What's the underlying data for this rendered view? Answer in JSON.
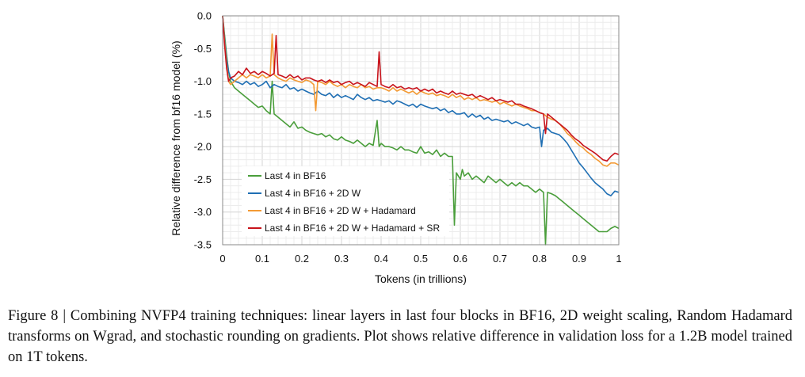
{
  "figure": {
    "caption": "Figure 8 | Combining NVFP4 training techniques: linear layers in last four blocks in BF16, 2D weight scaling, Random Hadamard transforms on Wgrad, and stochastic rounding on gradients. Plot shows relative difference in validation loss for a 1.2B model trained on 1T tokens."
  },
  "chart_data": {
    "type": "line",
    "title": "",
    "xlabel": "Tokens (in trillions)",
    "ylabel": "Relative difference from bf16 model (%)",
    "xlim": [
      0,
      1
    ],
    "ylim": [
      -3.5,
      0.0
    ],
    "x_ticks": [
      0,
      0.1,
      0.2,
      0.3,
      0.4,
      0.5,
      0.6,
      0.7,
      0.8,
      0.9,
      1
    ],
    "x_tick_labels": [
      "0",
      "0.1",
      "0.2",
      "0.3",
      "0.4",
      "0.5",
      "0.6",
      "0.7",
      "0.8",
      "0.9",
      "1"
    ],
    "y_ticks": [
      0.0,
      -0.5,
      -1.0,
      -1.5,
      -2.0,
      -2.5,
      -3.0,
      -3.5
    ],
    "y_tick_labels": [
      "0.0",
      "-0.5",
      "-1.0",
      "-1.5",
      "-2.0",
      "-2.5",
      "-3.0",
      "-3.5"
    ],
    "grid": true,
    "legend_position": "bottom-left",
    "series": [
      {
        "name": "Last 4 in BF16",
        "color": "#4a9e3b",
        "x": [
          0.0,
          0.005,
          0.01,
          0.015,
          0.02,
          0.03,
          0.04,
          0.05,
          0.06,
          0.07,
          0.08,
          0.09,
          0.1,
          0.11,
          0.12,
          0.125,
          0.13,
          0.14,
          0.15,
          0.16,
          0.17,
          0.18,
          0.19,
          0.2,
          0.21,
          0.22,
          0.23,
          0.24,
          0.25,
          0.26,
          0.27,
          0.28,
          0.29,
          0.3,
          0.31,
          0.32,
          0.33,
          0.34,
          0.35,
          0.36,
          0.37,
          0.38,
          0.39,
          0.395,
          0.4,
          0.41,
          0.42,
          0.43,
          0.44,
          0.45,
          0.46,
          0.47,
          0.48,
          0.49,
          0.5,
          0.51,
          0.52,
          0.53,
          0.54,
          0.55,
          0.56,
          0.57,
          0.58,
          0.585,
          0.59,
          0.6,
          0.605,
          0.61,
          0.62,
          0.63,
          0.64,
          0.65,
          0.66,
          0.67,
          0.68,
          0.69,
          0.7,
          0.71,
          0.72,
          0.73,
          0.74,
          0.75,
          0.76,
          0.77,
          0.78,
          0.79,
          0.8,
          0.81,
          0.815,
          0.82,
          0.83,
          0.84,
          0.85,
          0.86,
          0.87,
          0.88,
          0.89,
          0.9,
          0.91,
          0.92,
          0.93,
          0.94,
          0.95,
          0.96,
          0.97,
          0.98,
          0.99,
          1.0
        ],
        "values": [
          0.0,
          -0.3,
          -0.6,
          -0.85,
          -1.0,
          -1.1,
          -1.15,
          -1.2,
          -1.25,
          -1.3,
          -1.35,
          -1.4,
          -1.38,
          -1.45,
          -1.5,
          -1.0,
          -1.5,
          -1.55,
          -1.6,
          -1.65,
          -1.7,
          -1.62,
          -1.72,
          -1.7,
          -1.75,
          -1.78,
          -1.8,
          -1.82,
          -1.8,
          -1.85,
          -1.82,
          -1.88,
          -1.9,
          -1.85,
          -1.9,
          -1.92,
          -1.95,
          -1.9,
          -1.95,
          -2.0,
          -1.95,
          -1.98,
          -1.6,
          -2.0,
          -1.95,
          -2.0,
          -2.0,
          -2.02,
          -2.05,
          -2.0,
          -2.05,
          -2.05,
          -2.08,
          -2.1,
          -2.0,
          -2.1,
          -2.08,
          -2.12,
          -2.05,
          -2.15,
          -2.1,
          -2.15,
          -2.15,
          -3.2,
          -2.4,
          -2.5,
          -2.35,
          -2.45,
          -2.4,
          -2.5,
          -2.45,
          -2.5,
          -2.55,
          -2.45,
          -2.5,
          -2.55,
          -2.5,
          -2.55,
          -2.6,
          -2.55,
          -2.6,
          -2.55,
          -2.6,
          -2.6,
          -2.65,
          -2.7,
          -2.65,
          -2.7,
          -3.5,
          -2.7,
          -2.72,
          -2.75,
          -2.8,
          -2.85,
          -2.9,
          -2.95,
          -3.0,
          -3.05,
          -3.1,
          -3.15,
          -3.2,
          -3.25,
          -3.3,
          -3.3,
          -3.3,
          -3.25,
          -3.22,
          -3.25
        ]
      },
      {
        "name": "Last 4 in BF16 + 2D W",
        "color": "#1f6fb4",
        "x": [
          0.0,
          0.005,
          0.01,
          0.015,
          0.02,
          0.03,
          0.04,
          0.05,
          0.06,
          0.07,
          0.08,
          0.09,
          0.1,
          0.11,
          0.12,
          0.13,
          0.14,
          0.15,
          0.16,
          0.17,
          0.18,
          0.19,
          0.2,
          0.21,
          0.22,
          0.23,
          0.24,
          0.25,
          0.26,
          0.27,
          0.28,
          0.29,
          0.3,
          0.31,
          0.32,
          0.33,
          0.34,
          0.35,
          0.36,
          0.37,
          0.38,
          0.39,
          0.4,
          0.41,
          0.42,
          0.43,
          0.44,
          0.45,
          0.46,
          0.47,
          0.48,
          0.49,
          0.5,
          0.51,
          0.52,
          0.53,
          0.54,
          0.55,
          0.56,
          0.57,
          0.58,
          0.59,
          0.6,
          0.61,
          0.62,
          0.63,
          0.64,
          0.65,
          0.66,
          0.67,
          0.68,
          0.69,
          0.7,
          0.71,
          0.72,
          0.73,
          0.74,
          0.75,
          0.76,
          0.77,
          0.78,
          0.79,
          0.8,
          0.805,
          0.81,
          0.82,
          0.83,
          0.84,
          0.85,
          0.86,
          0.87,
          0.88,
          0.89,
          0.9,
          0.91,
          0.92,
          0.93,
          0.94,
          0.95,
          0.96,
          0.97,
          0.98,
          0.99,
          1.0
        ],
        "values": [
          0.0,
          -0.35,
          -0.65,
          -0.85,
          -0.95,
          -1.0,
          -1.02,
          -1.05,
          -1.0,
          -1.05,
          -1.02,
          -1.08,
          -1.05,
          -1.0,
          -1.1,
          -1.05,
          -1.08,
          -1.1,
          -1.05,
          -1.12,
          -1.1,
          -1.15,
          -1.12,
          -1.15,
          -1.18,
          -1.2,
          -1.15,
          -1.2,
          -1.22,
          -1.18,
          -1.25,
          -1.2,
          -1.25,
          -1.22,
          -1.25,
          -1.28,
          -1.2,
          -1.25,
          -1.28,
          -1.25,
          -1.3,
          -1.28,
          -1.3,
          -1.32,
          -1.3,
          -1.35,
          -1.3,
          -1.32,
          -1.35,
          -1.38,
          -1.35,
          -1.4,
          -1.35,
          -1.38,
          -1.4,
          -1.42,
          -1.4,
          -1.45,
          -1.42,
          -1.48,
          -1.45,
          -1.5,
          -1.5,
          -1.48,
          -1.55,
          -1.5,
          -1.55,
          -1.52,
          -1.58,
          -1.55,
          -1.6,
          -1.58,
          -1.6,
          -1.62,
          -1.6,
          -1.65,
          -1.62,
          -1.65,
          -1.68,
          -1.65,
          -1.7,
          -1.72,
          -1.7,
          -2.0,
          -1.75,
          -1.72,
          -1.78,
          -1.8,
          -1.82,
          -1.88,
          -1.95,
          -2.05,
          -2.15,
          -2.25,
          -2.32,
          -2.4,
          -2.48,
          -2.55,
          -2.6,
          -2.65,
          -2.72,
          -2.75,
          -2.68,
          -2.7
        ]
      },
      {
        "name": "Last 4 in BF16 + 2D W + Hadamard",
        "color": "#f39a34",
        "x": [
          0.0,
          0.005,
          0.01,
          0.015,
          0.02,
          0.03,
          0.04,
          0.05,
          0.06,
          0.07,
          0.08,
          0.09,
          0.1,
          0.11,
          0.12,
          0.125,
          0.13,
          0.14,
          0.15,
          0.16,
          0.17,
          0.18,
          0.19,
          0.2,
          0.21,
          0.22,
          0.23,
          0.235,
          0.24,
          0.25,
          0.26,
          0.27,
          0.28,
          0.29,
          0.3,
          0.31,
          0.32,
          0.33,
          0.34,
          0.35,
          0.36,
          0.37,
          0.38,
          0.39,
          0.4,
          0.41,
          0.42,
          0.43,
          0.44,
          0.45,
          0.46,
          0.47,
          0.48,
          0.49,
          0.5,
          0.51,
          0.52,
          0.53,
          0.54,
          0.55,
          0.56,
          0.57,
          0.58,
          0.59,
          0.6,
          0.61,
          0.62,
          0.63,
          0.64,
          0.65,
          0.66,
          0.67,
          0.68,
          0.69,
          0.7,
          0.71,
          0.72,
          0.73,
          0.74,
          0.75,
          0.76,
          0.77,
          0.78,
          0.79,
          0.8,
          0.81,
          0.82,
          0.83,
          0.84,
          0.85,
          0.86,
          0.87,
          0.88,
          0.89,
          0.9,
          0.91,
          0.92,
          0.93,
          0.94,
          0.95,
          0.96,
          0.97,
          0.98,
          0.99,
          1.0
        ],
        "values": [
          0.0,
          -0.4,
          -0.75,
          -1.0,
          -1.05,
          -1.0,
          -0.95,
          -0.9,
          -0.95,
          -0.9,
          -0.92,
          -0.95,
          -0.9,
          -0.95,
          -0.92,
          -0.28,
          -0.9,
          -0.95,
          -0.98,
          -1.0,
          -0.95,
          -0.98,
          -1.0,
          -1.02,
          -0.98,
          -1.0,
          -1.05,
          -1.45,
          -1.0,
          -1.02,
          -1.05,
          -1.0,
          -1.05,
          -1.08,
          -1.05,
          -1.1,
          -1.05,
          -1.08,
          -1.1,
          -1.05,
          -1.1,
          -1.08,
          -1.12,
          -1.1,
          -1.1,
          -1.12,
          -1.15,
          -1.1,
          -1.15,
          -1.12,
          -1.15,
          -1.18,
          -1.15,
          -1.2,
          -1.15,
          -1.18,
          -1.2,
          -1.18,
          -1.22,
          -1.2,
          -1.22,
          -1.25,
          -1.2,
          -1.25,
          -1.22,
          -1.28,
          -1.25,
          -1.28,
          -1.25,
          -1.3,
          -1.28,
          -1.3,
          -1.32,
          -1.3,
          -1.35,
          -1.32,
          -1.35,
          -1.38,
          -1.35,
          -1.38,
          -1.4,
          -1.42,
          -1.45,
          -1.45,
          -1.48,
          -1.5,
          -1.55,
          -1.58,
          -1.6,
          -1.65,
          -1.72,
          -1.8,
          -1.85,
          -1.92,
          -1.98,
          -2.02,
          -2.08,
          -2.12,
          -2.18,
          -2.22,
          -2.28,
          -2.3,
          -2.25,
          -2.25,
          -2.28
        ]
      },
      {
        "name": "Last 4 in BF16 + 2D W + Hadamard + SR",
        "color": "#c8141c",
        "x": [
          0.0,
          0.005,
          0.01,
          0.015,
          0.02,
          0.03,
          0.04,
          0.05,
          0.06,
          0.07,
          0.08,
          0.09,
          0.1,
          0.11,
          0.12,
          0.13,
          0.135,
          0.14,
          0.15,
          0.16,
          0.17,
          0.18,
          0.19,
          0.2,
          0.21,
          0.22,
          0.23,
          0.24,
          0.25,
          0.26,
          0.27,
          0.28,
          0.29,
          0.3,
          0.31,
          0.32,
          0.33,
          0.34,
          0.35,
          0.36,
          0.37,
          0.38,
          0.39,
          0.395,
          0.4,
          0.41,
          0.42,
          0.43,
          0.44,
          0.45,
          0.46,
          0.47,
          0.48,
          0.49,
          0.5,
          0.51,
          0.52,
          0.53,
          0.54,
          0.55,
          0.56,
          0.57,
          0.58,
          0.59,
          0.6,
          0.61,
          0.62,
          0.63,
          0.64,
          0.65,
          0.66,
          0.67,
          0.68,
          0.69,
          0.7,
          0.71,
          0.72,
          0.73,
          0.74,
          0.75,
          0.76,
          0.77,
          0.78,
          0.79,
          0.8,
          0.81,
          0.815,
          0.82,
          0.83,
          0.84,
          0.85,
          0.86,
          0.87,
          0.88,
          0.89,
          0.9,
          0.91,
          0.92,
          0.93,
          0.94,
          0.95,
          0.96,
          0.97,
          0.98,
          0.99,
          1.0
        ],
        "values": [
          0.0,
          -0.45,
          -0.8,
          -1.0,
          -0.95,
          -0.92,
          -0.85,
          -0.9,
          -0.8,
          -0.88,
          -0.85,
          -0.9,
          -0.85,
          -0.88,
          -0.92,
          -0.88,
          -0.3,
          -0.9,
          -0.92,
          -0.95,
          -0.9,
          -0.95,
          -0.92,
          -0.98,
          -0.95,
          -0.95,
          -0.98,
          -1.0,
          -0.98,
          -1.02,
          -0.98,
          -1.02,
          -1.0,
          -1.05,
          -1.02,
          -1.0,
          -1.05,
          -1.02,
          -1.05,
          -1.08,
          -1.02,
          -1.05,
          -1.08,
          -0.55,
          -1.05,
          -1.08,
          -1.1,
          -1.05,
          -1.1,
          -1.08,
          -1.12,
          -1.1,
          -1.12,
          -1.1,
          -1.15,
          -1.12,
          -1.15,
          -1.12,
          -1.18,
          -1.15,
          -1.18,
          -1.2,
          -1.15,
          -1.2,
          -1.18,
          -1.2,
          -1.22,
          -1.2,
          -1.25,
          -1.22,
          -1.25,
          -1.28,
          -1.25,
          -1.3,
          -1.28,
          -1.3,
          -1.32,
          -1.3,
          -1.35,
          -1.35,
          -1.38,
          -1.4,
          -1.42,
          -1.45,
          -1.48,
          -1.5,
          -1.8,
          -1.5,
          -1.55,
          -1.6,
          -1.65,
          -1.7,
          -1.75,
          -1.82,
          -1.88,
          -1.92,
          -1.98,
          -2.02,
          -2.06,
          -2.1,
          -2.15,
          -2.2,
          -2.22,
          -2.15,
          -2.1,
          -2.12
        ]
      }
    ]
  }
}
